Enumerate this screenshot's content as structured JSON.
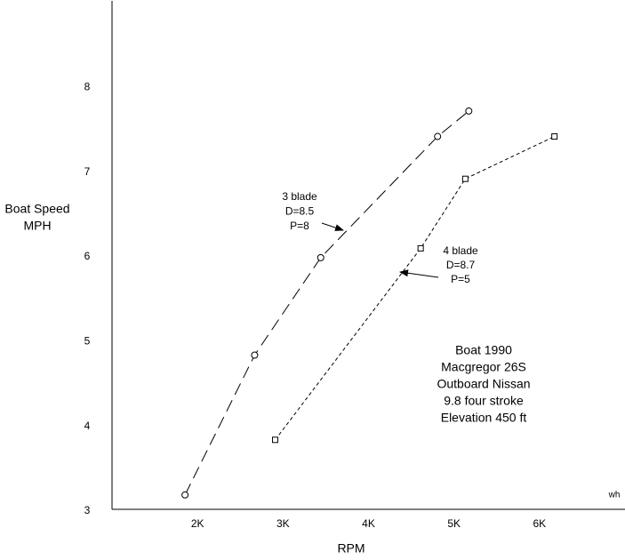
{
  "chart_data": {
    "type": "line",
    "x_label": "RPM",
    "y_label": [
      "Boat Speed",
      "MPH"
    ],
    "corner_text": "wh",
    "xlim": [
      1000,
      7000
    ],
    "ylim": [
      3,
      9
    ],
    "xticks": [
      {
        "value": 2000,
        "label": "2K"
      },
      {
        "value": 3000,
        "label": "3K"
      },
      {
        "value": 4000,
        "label": "4K"
      },
      {
        "value": 5000,
        "label": "5K"
      },
      {
        "value": 6000,
        "label": "6K"
      }
    ],
    "yticks": [
      3,
      4,
      5,
      6,
      7,
      8
    ],
    "series": [
      {
        "color": "#000000",
        "marker": "circle",
        "dash": "14 7",
        "x": [
          1854,
          2668,
          3441,
          4808,
          5173
        ],
        "values": [
          3.17,
          4.82,
          5.97,
          7.4,
          7.7
        ]
      },
      {
        "color": "#000000",
        "marker": "square",
        "dash": "4 3",
        "x": [
          2908,
          4610,
          5132,
          6175
        ],
        "values": [
          3.82,
          6.08,
          6.9,
          7.4
        ]
      }
    ],
    "annotations": [
      {
        "lines": [
          "3 blade",
          "D=8.5",
          "P=8"
        ]
      },
      {
        "lines": [
          "4 blade",
          "D=8.7",
          "P=5"
        ]
      },
      {
        "lines": [
          "Boat 1990",
          "Macgregor 26S",
          "Outboard Nissan",
          "9.8 four stroke",
          "Elevation 450 ft"
        ]
      }
    ]
  }
}
